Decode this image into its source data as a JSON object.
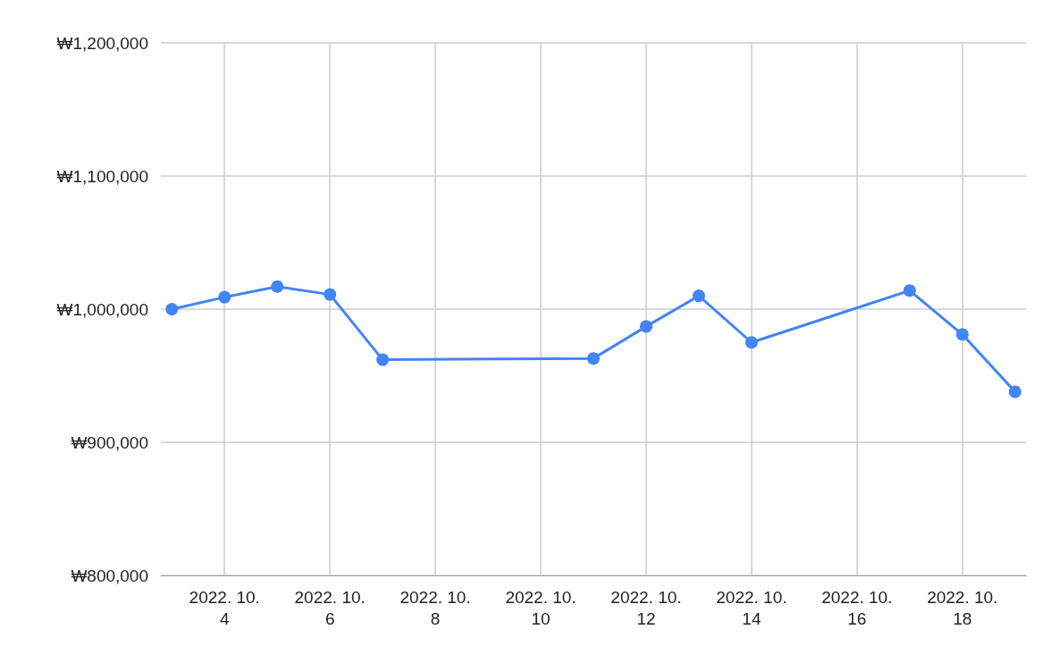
{
  "chart_data": {
    "type": "line",
    "x": [
      "2022-10-03",
      "2022-10-04",
      "2022-10-05",
      "2022-10-06",
      "2022-10-07",
      "2022-10-11",
      "2022-10-12",
      "2022-10-13",
      "2022-10-14",
      "2022-10-17",
      "2022-10-18",
      "2022-10-19"
    ],
    "series": [
      {
        "color": "#4285f4",
        "values": [
          1000000,
          1009000,
          1017000,
          1011000,
          962000,
          963000,
          987000,
          1010000,
          975000,
          1014000,
          981000,
          938000
        ]
      }
    ],
    "xlim": [
      "2022-10-02T19:00",
      "2022-10-19T05:00"
    ],
    "xticks": [
      {
        "value": "2022-10-04",
        "label": "2022. 10.\n4"
      },
      {
        "value": "2022-10-06",
        "label": "2022. 10.\n6"
      },
      {
        "value": "2022-10-08",
        "label": "2022. 10.\n8"
      },
      {
        "value": "2022-10-10",
        "label": "2022. 10.\n10"
      },
      {
        "value": "2022-10-12",
        "label": "2022. 10.\n12"
      },
      {
        "value": "2022-10-14",
        "label": "2022. 10.\n14"
      },
      {
        "value": "2022-10-16",
        "label": "2022. 10.\n16"
      },
      {
        "value": "2022-10-18",
        "label": "2022. 10.\n18"
      }
    ],
    "ylim": [
      800000,
      1200000
    ],
    "yticks": [
      {
        "value": 800000,
        "label": "₩800,000"
      },
      {
        "value": 900000,
        "label": "₩900,000"
      },
      {
        "value": 1000000,
        "label": "₩1,000,000"
      },
      {
        "value": 1100000,
        "label": "₩1,100,000"
      },
      {
        "value": 1200000,
        "label": "₩1,200,000"
      }
    ],
    "grid": true,
    "marker": "circle",
    "line_style": "solid"
  }
}
